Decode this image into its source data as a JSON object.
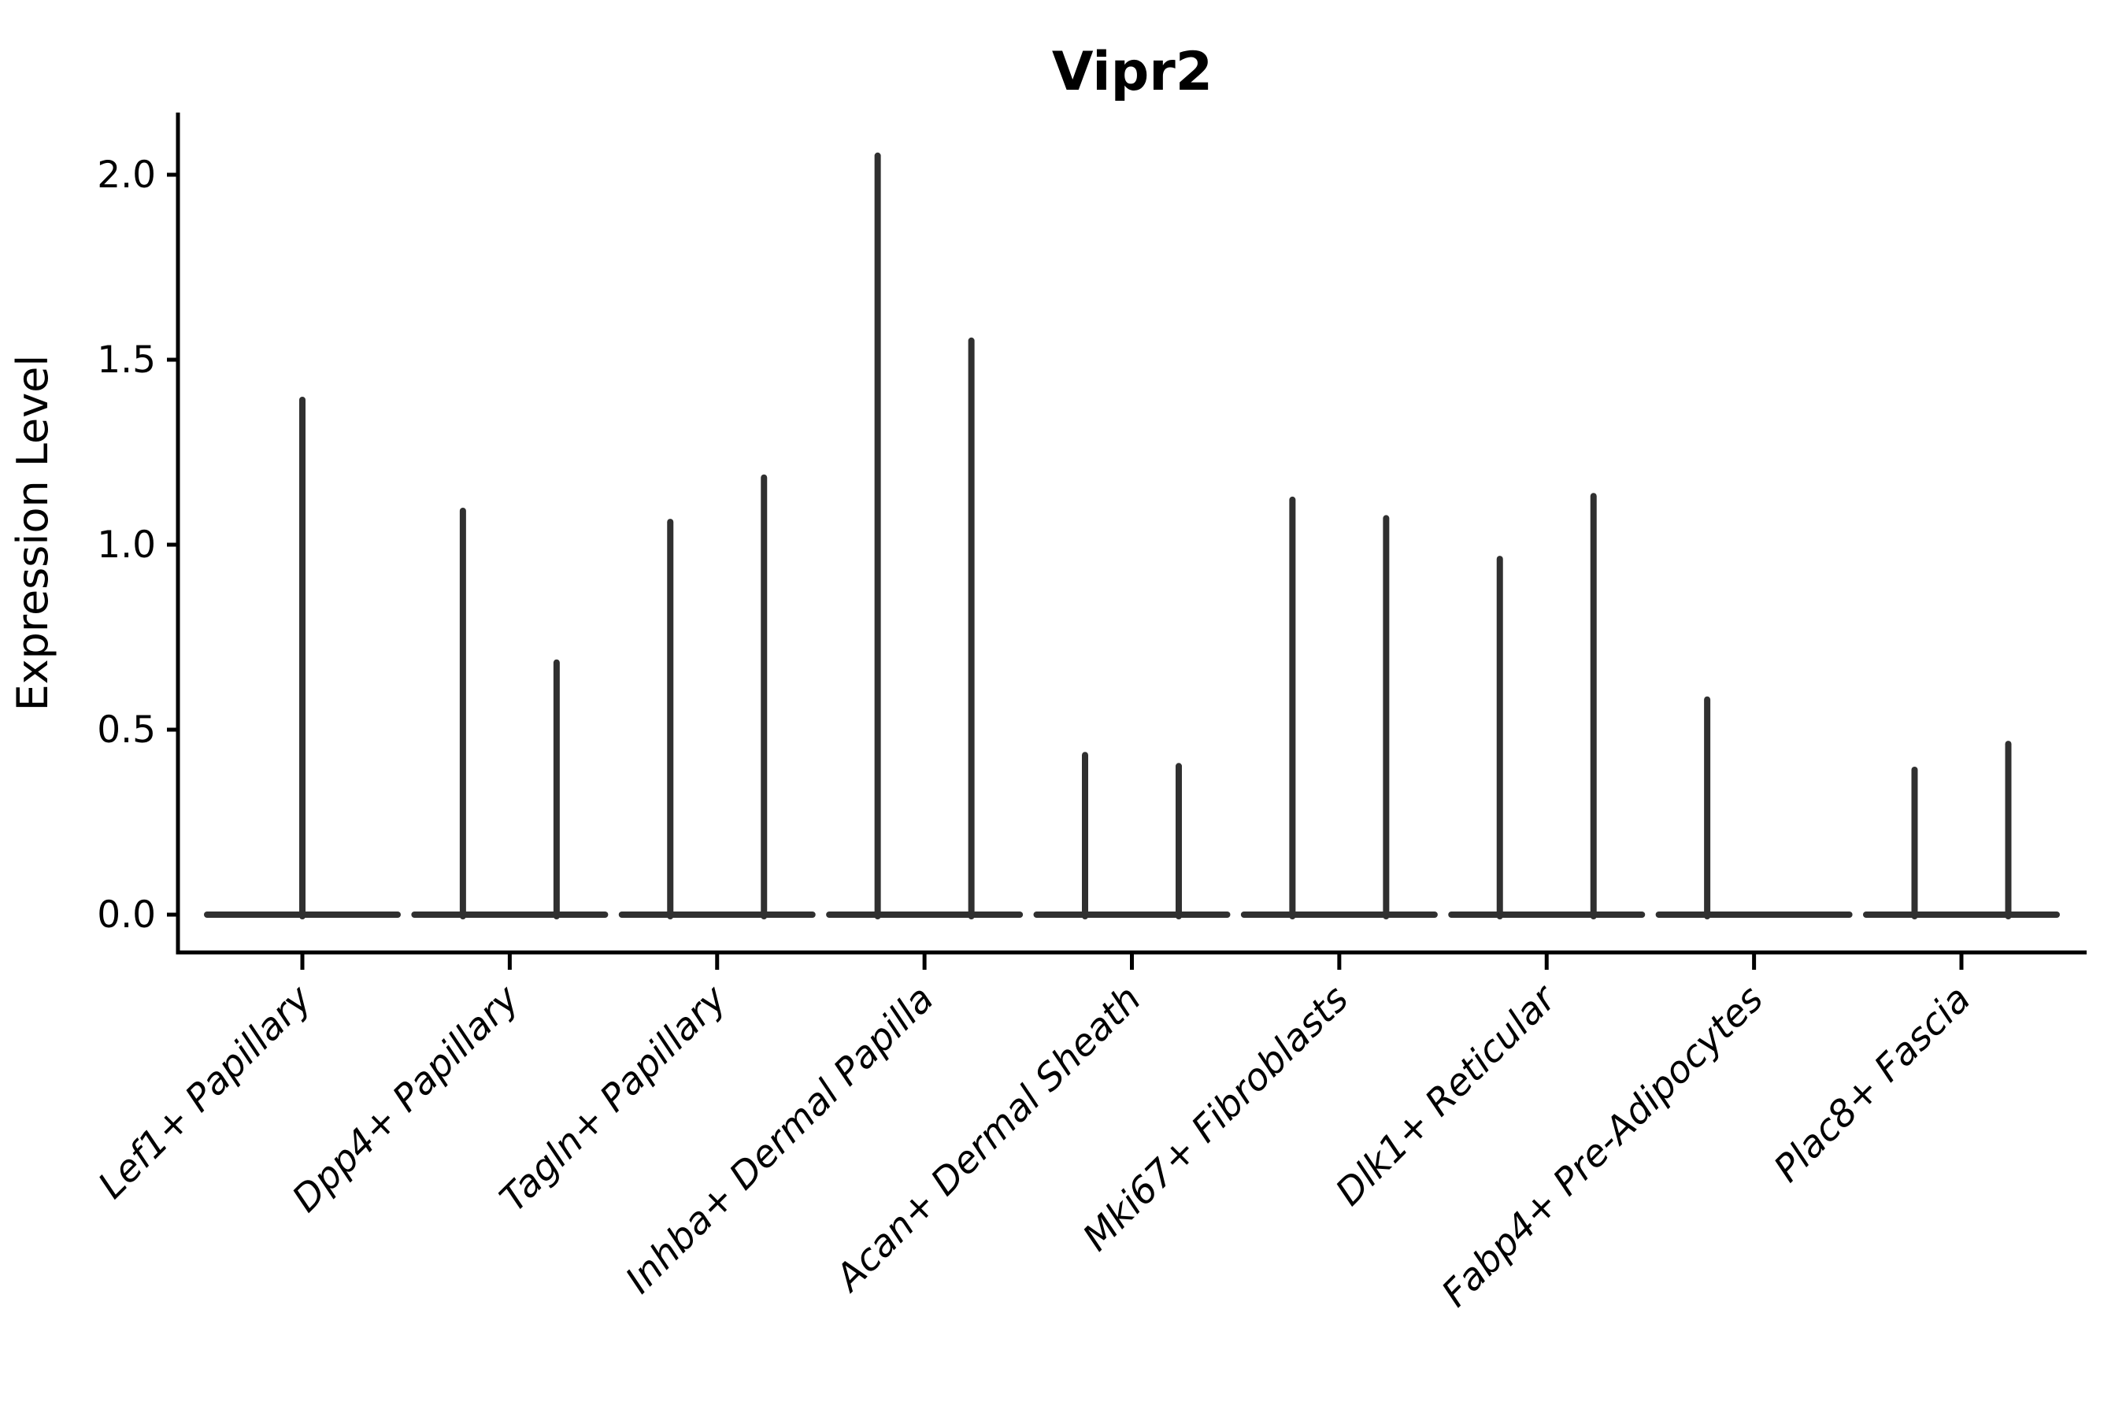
{
  "chart_data": {
    "type": "violin",
    "title": "Vipr2",
    "xlabel": "",
    "ylabel": "Expression Level",
    "ylim": [
      -0.1,
      2.17
    ],
    "yticks": [
      0.0,
      0.5,
      1.0,
      1.5,
      2.0
    ],
    "ytick_labels": [
      "0.0",
      "0.5",
      "1.0",
      "1.5",
      "2.0"
    ],
    "grid": false,
    "legend": null,
    "categories": [
      "Lef1+ Papillary",
      "Dpp4+ Papillary",
      "Tagln+ Papillary",
      "Inhba+ Dermal Papilla",
      "Acan+ Dermal Sheath",
      "Mki67+ Fibroblasts",
      "Dlk1+ Reticular",
      "Fabp4+ Pre-Adipocytes",
      "Plac8+ Fascia"
    ],
    "series": [
      {
        "category": "Lef1+ Papillary",
        "spikes": [
          {
            "pos": "center",
            "max": 1.4
          }
        ]
      },
      {
        "category": "Dpp4+ Papillary",
        "spikes": [
          {
            "pos": "left",
            "max": 1.1
          },
          {
            "pos": "right",
            "max": 0.69
          }
        ]
      },
      {
        "category": "Tagln+ Papillary",
        "spikes": [
          {
            "pos": "left",
            "max": 1.07
          },
          {
            "pos": "right",
            "max": 1.19
          }
        ]
      },
      {
        "category": "Inhba+ Dermal Papilla",
        "spikes": [
          {
            "pos": "left",
            "max": 2.06
          },
          {
            "pos": "right",
            "max": 1.56
          }
        ]
      },
      {
        "category": "Acan+ Dermal Sheath",
        "spikes": [
          {
            "pos": "left",
            "max": 0.44
          },
          {
            "pos": "right",
            "max": 0.41
          }
        ]
      },
      {
        "category": "Mki67+ Fibroblasts",
        "spikes": [
          {
            "pos": "left",
            "max": 1.13
          },
          {
            "pos": "right",
            "max": 1.08
          }
        ]
      },
      {
        "category": "Dlk1+ Reticular",
        "spikes": [
          {
            "pos": "left",
            "max": 0.97
          },
          {
            "pos": "right",
            "max": 1.14
          }
        ]
      },
      {
        "category": "Fabp4+ Pre-Adipocytes",
        "spikes": [
          {
            "pos": "left",
            "max": 0.59
          }
        ]
      },
      {
        "category": "Plac8+ Fascia",
        "spikes": [
          {
            "pos": "left",
            "max": 0.4
          },
          {
            "pos": "right",
            "max": 0.47
          }
        ]
      }
    ],
    "colors": {
      "background": "#ffffff",
      "axis": "#000000",
      "text": "#000000",
      "violin_stroke": "#303030"
    }
  }
}
